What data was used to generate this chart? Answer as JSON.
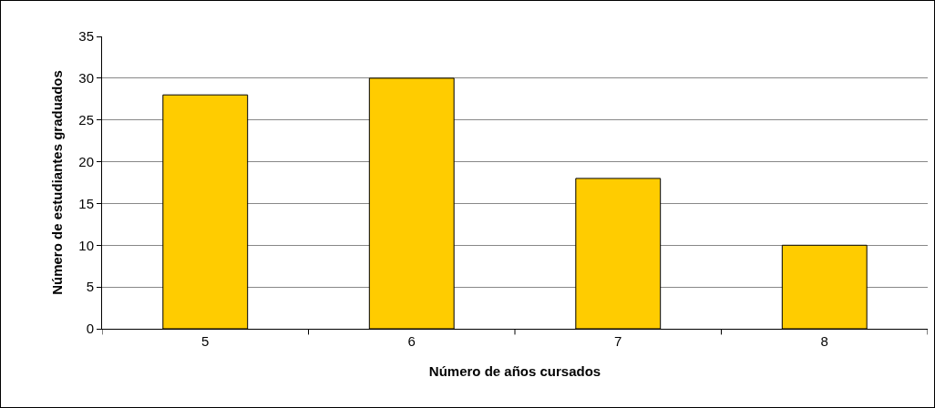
{
  "chart_data": {
    "type": "bar",
    "xlabel": "Número de años cursados",
    "ylabel": "Número de estudiantes graduados",
    "categories": [
      "5",
      "6",
      "7",
      "8"
    ],
    "values": [
      28,
      30,
      18,
      10
    ],
    "color": "#ffcc00",
    "ylim": [
      0,
      35
    ],
    "yticks": [
      0,
      5,
      10,
      15,
      20,
      25,
      30,
      35
    ],
    "grid": "y"
  }
}
